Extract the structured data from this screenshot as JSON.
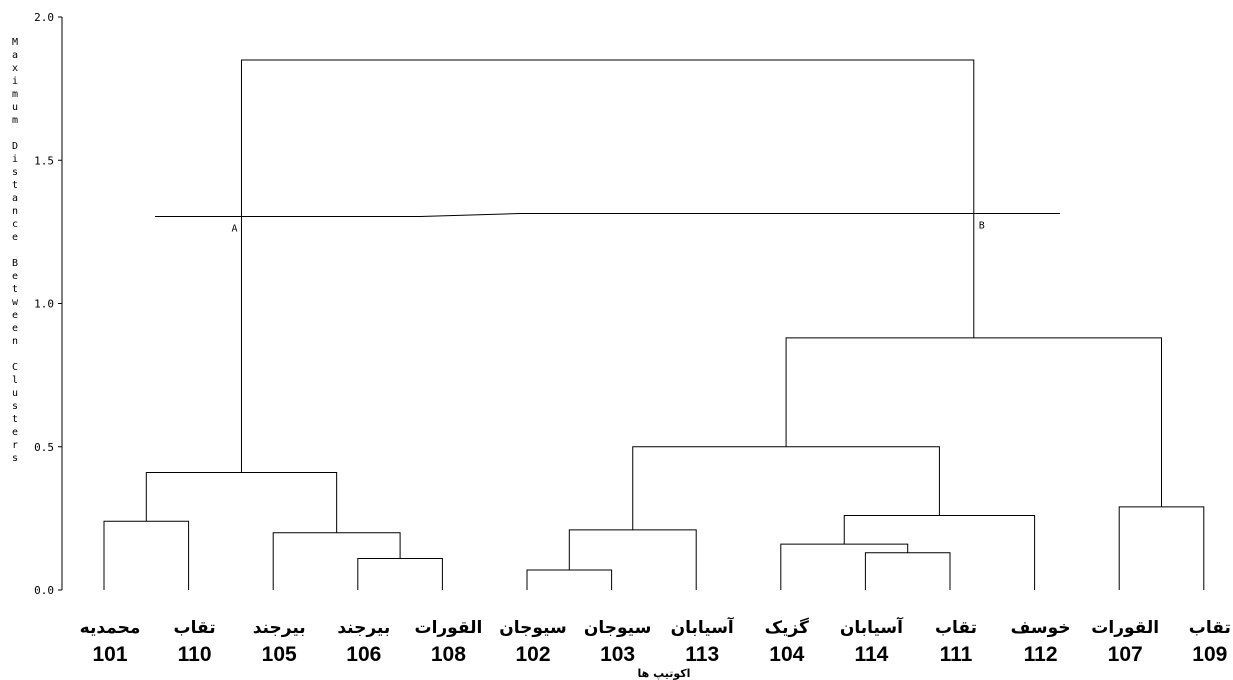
{
  "chart_data": {
    "type": "dendrogram",
    "ylabel": "Maximum Distance Between Clusters",
    "xlabel": "اکوتیپ ها",
    "ylim": [
      0.0,
      2.0
    ],
    "yticks": [
      "0.0",
      "0.5",
      "1.0",
      "1.5",
      "2.0"
    ],
    "leaves": [
      {
        "name": "محمدیه",
        "id": "101"
      },
      {
        "name": "تقاب",
        "id": "110"
      },
      {
        "name": "بیرجند",
        "id": "105"
      },
      {
        "name": "بیرجند",
        "id": "106"
      },
      {
        "name": "القورات",
        "id": "108"
      },
      {
        "name": "سیوجان",
        "id": "102"
      },
      {
        "name": "سیوجان",
        "id": "103"
      },
      {
        "name": "آسیابان",
        "id": "113"
      },
      {
        "name": "گزیک",
        "id": "104"
      },
      {
        "name": "آسیابان",
        "id": "114"
      },
      {
        "name": "تقاب",
        "id": "111"
      },
      {
        "name": "خوسف",
        "id": "112"
      },
      {
        "name": "القورات",
        "id": "107"
      },
      {
        "name": "تقاب",
        "id": "109"
      }
    ],
    "merges": [
      {
        "left": "L0",
        "right": "L1",
        "height": 0.24
      },
      {
        "left": "L3",
        "right": "L4",
        "height": 0.11
      },
      {
        "left": "L2",
        "right": "M1",
        "height": 0.2
      },
      {
        "left": "M0",
        "right": "M2",
        "height": 0.41
      },
      {
        "left": "L5",
        "right": "L6",
        "height": 0.07
      },
      {
        "left": "M4",
        "right": "L7",
        "height": 0.21
      },
      {
        "left": "L10",
        "right": "L9",
        "height": 0.13
      },
      {
        "left": "L8",
        "right": "M6",
        "height": 0.16
      },
      {
        "left": "M7",
        "right": "L11",
        "height": 0.26
      },
      {
        "left": "M5",
        "right": "M8",
        "height": 0.5
      },
      {
        "left": "L12",
        "right": "L13",
        "height": 0.29
      },
      {
        "left": "M9",
        "right": "M10",
        "height": 0.88
      },
      {
        "left": "M3",
        "right": "M11",
        "height": 1.85
      }
    ],
    "cut_line": {
      "height": 1.3,
      "labels": [
        "A",
        "B"
      ]
    }
  }
}
